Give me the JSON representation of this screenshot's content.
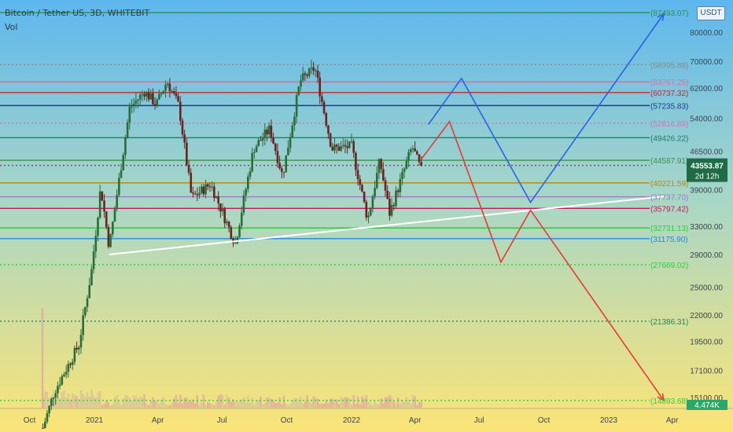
{
  "header": {
    "title": "Bitcoin / Tether US, 3D, WHITEBIT",
    "indicator": "Vol"
  },
  "price_scale_unit": "USDT",
  "colors": {
    "bg_top": "#5db7ee",
    "bg_bottom": "#fbe477",
    "candle_up": "#2b6b39",
    "candle_down": "#6a2323",
    "price_tag": "#1f6b45",
    "volume_tag": "#2aa86a"
  },
  "chart_data": {
    "type": "candlestick",
    "title": "Bitcoin / Tether US, 3D, WHITEBIT",
    "price_axis": {
      "scale": "log",
      "ticks": [
        "80000.00",
        "70000.00",
        "62000.00",
        "54000.00",
        "46500.00",
        "39000.00",
        "33000.00",
        "29000.00",
        "25000.00",
        "22000.00",
        "19500.00",
        "17100.00",
        "15100.00"
      ]
    },
    "time_axis": {
      "ticks": [
        "Oct",
        "2021",
        "Apr",
        "Jul",
        "Oct",
        "2022",
        "Apr",
        "Jul",
        "Oct",
        "2023",
        "Apr"
      ]
    },
    "current_price": {
      "value": "43553.87",
      "countdown": "2d 12h"
    },
    "volume_value": "4.474K",
    "horizontal_levels": [
      {
        "value": 87493.07,
        "label": "(87493.07)",
        "color": "#2e8b57",
        "style": "solid"
      },
      {
        "value": 68995.88,
        "label": "(68995.88)",
        "color": "#8a8a8a",
        "style": "dotted"
      },
      {
        "value": 63767.25,
        "label": "(63767.25)",
        "color": "#e66a9a",
        "style": "solid"
      },
      {
        "value": 60737.32,
        "label": "(60737.32)",
        "color": "#c62828",
        "style": "solid"
      },
      {
        "value": 57235.83,
        "label": "(57235.83)",
        "color": "#1a3e8c",
        "style": "solid"
      },
      {
        "value": 52816.89,
        "label": "(52816.89)",
        "color": "#e06bb0",
        "style": "dotted"
      },
      {
        "value": 49426.22,
        "label": "(49426.22)",
        "color": "#1b7f6b",
        "style": "solid"
      },
      {
        "value": 44587.91,
        "label": "(44587.91)",
        "color": "#3f8f4f",
        "style": "solid"
      },
      {
        "value": 43553.87,
        "label": "",
        "color": "#c62828",
        "style": "dotted"
      },
      {
        "value": 40221.59,
        "label": "(40221.59)",
        "color": "#b8860b",
        "style": "solid"
      },
      {
        "value": 37737.7,
        "label": "(37737.70)",
        "color": "#a07cc0",
        "style": "solid"
      },
      {
        "value": 35797.42,
        "label": "(35797.42)",
        "color": "#c2185b",
        "style": "solid"
      },
      {
        "value": 32731.13,
        "label": "(32731.13)",
        "color": "#2ecc40",
        "style": "solid"
      },
      {
        "value": 31175.9,
        "label": "(31175.90)",
        "color": "#1e88e5",
        "style": "solid"
      },
      {
        "value": 27669.02,
        "label": "(27669.02)",
        "color": "#2ecc40",
        "style": "dotted"
      },
      {
        "value": 21386.31,
        "label": "(21386.31)",
        "color": "#1e8a5a",
        "style": "dotted"
      },
      {
        "value": 14893.68,
        "label": "(14893.68)",
        "color": "#2ecc40",
        "style": "dotted"
      }
    ],
    "trendline": {
      "from": {
        "date": "2021-01-22",
        "price": 29000
      },
      "to": {
        "date": "2023-03-20",
        "price": 37800
      },
      "color": "#ffffff"
    },
    "projections": [
      {
        "name": "bullish",
        "color": "#2a63e0",
        "points": [
          [
            "2022-04-20",
            52500
          ],
          [
            "2022-06-06",
            64800
          ],
          [
            "2022-09-12",
            36800
          ],
          [
            "2023-03-20",
            87000
          ]
        ]
      },
      {
        "name": "bearish",
        "color": "#e53935",
        "points": [
          [
            "2022-04-10",
            44800
          ],
          [
            "2022-05-20",
            53200
          ],
          [
            "2022-08-01",
            28000
          ],
          [
            "2022-09-12",
            35500
          ],
          [
            "2023-03-20",
            14900
          ]
        ]
      }
    ],
    "ohlc_path": [
      [
        "2020-10-01",
        10800
      ],
      [
        "2020-11-05",
        15500
      ],
      [
        "2020-12-10",
        19200
      ],
      [
        "2020-12-28",
        27000
      ],
      [
        "2021-01-10",
        39500
      ],
      [
        "2021-01-22",
        30000
      ],
      [
        "2021-02-20",
        56500
      ],
      [
        "2021-03-13",
        61000
      ],
      [
        "2021-03-30",
        57500
      ],
      [
        "2021-04-14",
        64000
      ],
      [
        "2021-05-01",
        57000
      ],
      [
        "2021-05-19",
        37500
      ],
      [
        "2021-06-15",
        40000
      ],
      [
        "2021-07-20",
        30500
      ],
      [
        "2021-08-15",
        47000
      ],
      [
        "2021-09-07",
        51500
      ],
      [
        "2021-09-25",
        41500
      ],
      [
        "2021-10-20",
        64000
      ],
      [
        "2021-11-10",
        68000
      ],
      [
        "2021-12-04",
        47000
      ],
      [
        "2022-01-01",
        47500
      ],
      [
        "2022-01-24",
        34000
      ],
      [
        "2022-02-10",
        44500
      ],
      [
        "2022-02-24",
        35000
      ],
      [
        "2022-03-28",
        47500
      ],
      [
        "2022-04-10",
        42500
      ]
    ]
  }
}
